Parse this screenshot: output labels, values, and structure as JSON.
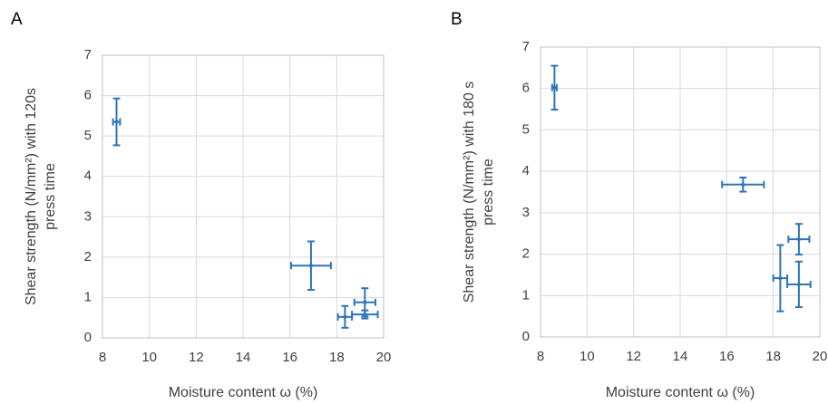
{
  "chart_data": [
    {
      "type": "scatter",
      "panel_label": "A",
      "x_label": "Moisture content ω (%)",
      "y_label": [
        "Shear strength (N/mm²) with 120s",
        "press time"
      ],
      "color": "#2e75b6",
      "x": [
        8.6,
        16.9,
        18.35,
        19.2,
        19.2
      ],
      "values": [
        5.35,
        1.79,
        0.52,
        0.88,
        0.58
      ],
      "x_errors": [
        0.15,
        0.85,
        0.3,
        0.45,
        0.55
      ],
      "y_errors": [
        0.58,
        0.6,
        0.27,
        0.35,
        0.1
      ],
      "xlim": [
        8,
        20
      ],
      "xticks": [
        8,
        10,
        12,
        14,
        16,
        18,
        20
      ],
      "ylim": [
        0,
        7
      ],
      "yticks": [
        0,
        1,
        2,
        3,
        4,
        5,
        6,
        7
      ],
      "grid": true
    },
    {
      "type": "scatter",
      "panel_label": "B",
      "x_label": "Moisture content ω (%)",
      "y_label": [
        "Shear strength (N/mm²) with 180 s",
        "press time"
      ],
      "color": "#2e75b6",
      "x": [
        8.6,
        16.7,
        18.3,
        19.1,
        19.1
      ],
      "values": [
        6.02,
        3.68,
        1.42,
        1.27,
        2.36
      ],
      "x_errors": [
        0.1,
        0.9,
        0.3,
        0.5,
        0.45
      ],
      "y_errors": [
        0.53,
        0.17,
        0.8,
        0.55,
        0.37
      ],
      "xlim": [
        8,
        20
      ],
      "xticks": [
        8,
        10,
        12,
        14,
        16,
        18,
        20
      ],
      "ylim": [
        0,
        7
      ],
      "yticks": [
        0,
        1,
        2,
        3,
        4,
        5,
        6,
        7
      ],
      "grid": true
    }
  ]
}
